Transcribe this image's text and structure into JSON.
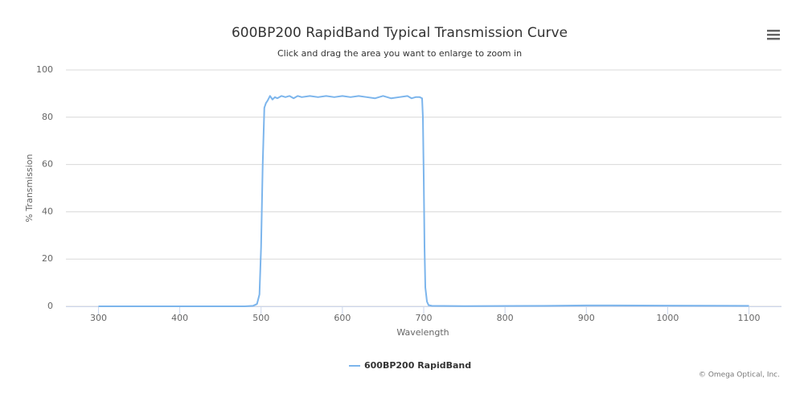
{
  "chart_data": {
    "type": "line",
    "title": "600BP200 RapidBand Typical Transmission Curve",
    "subtitle": "Click and drag the area you want to enlarge to zoom in",
    "x_label": "Wavelength",
    "y_label": "% Transmission",
    "credits": "© Omega Optical, Inc.",
    "xlim": [
      260,
      1140
    ],
    "xticks": [
      300,
      400,
      500,
      600,
      700,
      800,
      900,
      1000,
      1100
    ],
    "ylim": [
      0,
      100
    ],
    "yticks": [
      0,
      20,
      40,
      60,
      80,
      100
    ],
    "grid": true,
    "x": [
      300,
      480,
      490,
      495,
      498,
      500,
      502,
      504,
      506,
      508,
      511,
      514,
      517,
      520,
      525,
      530,
      535,
      540,
      545,
      550,
      560,
      570,
      580,
      590,
      600,
      610,
      620,
      630,
      640,
      650,
      660,
      670,
      680,
      685,
      690,
      695,
      698,
      699,
      700,
      701,
      702,
      704,
      706,
      710,
      750,
      850,
      900,
      1000,
      1100
    ],
    "series": [
      {
        "name": "600BP200 RapidBand",
        "color": "#7cb5ec",
        "values": [
          0,
          0,
          0.2,
          1,
          5,
          25,
          60,
          84,
          86,
          87,
          89,
          87.5,
          88.5,
          88,
          89,
          88.5,
          89,
          88,
          89,
          88.5,
          89,
          88.5,
          89,
          88.5,
          89,
          88.5,
          89,
          88.5,
          88,
          89,
          88,
          88.5,
          89,
          88,
          88.5,
          88.5,
          88,
          80,
          55,
          25,
          8,
          2,
          0.5,
          0.2,
          0.1,
          0.2,
          0.4,
          0.3,
          0.2
        ]
      }
    ]
  }
}
